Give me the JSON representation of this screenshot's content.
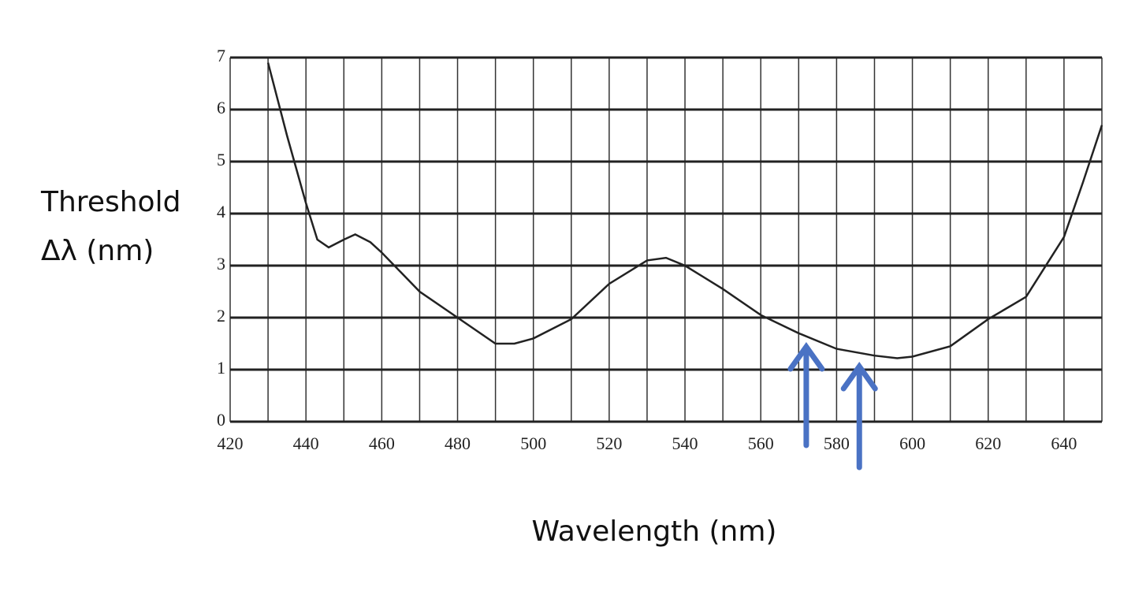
{
  "chart_data": {
    "type": "line",
    "ylabel": [
      "Threshold",
      "Δλ (nm)"
    ],
    "xlabel": "Wavelength (nm)",
    "x": [
      430,
      435,
      440,
      443,
      446,
      450,
      453,
      457,
      460,
      470,
      480,
      490,
      495,
      500,
      510,
      520,
      530,
      535,
      540,
      550,
      560,
      570,
      580,
      590,
      596,
      600,
      610,
      620,
      630,
      640,
      645,
      650
    ],
    "series": [
      {
        "color": "#222222",
        "values": [
          6.9,
          5.5,
          4.2,
          3.5,
          3.35,
          3.5,
          3.6,
          3.45,
          3.25,
          2.5,
          2.0,
          1.5,
          1.5,
          1.6,
          1.97,
          2.65,
          3.1,
          3.15,
          3.0,
          2.55,
          2.05,
          1.7,
          1.4,
          1.27,
          1.22,
          1.25,
          1.45,
          1.97,
          2.4,
          3.55,
          4.6,
          5.7
        ]
      }
    ],
    "xlim": [
      420,
      650
    ],
    "ylim": [
      0,
      7
    ],
    "xticks": [
      420,
      440,
      460,
      480,
      500,
      520,
      540,
      560,
      580,
      600,
      620,
      640
    ],
    "x_minor_ticks": [
      430,
      450,
      470,
      490,
      510,
      530,
      550,
      570,
      590,
      610,
      630,
      650
    ],
    "yticks": [
      0,
      1,
      2,
      3,
      4,
      5,
      6,
      7
    ],
    "grid": true,
    "arrows": {
      "color": "#4a72c4",
      "x": [
        572,
        586
      ]
    }
  }
}
